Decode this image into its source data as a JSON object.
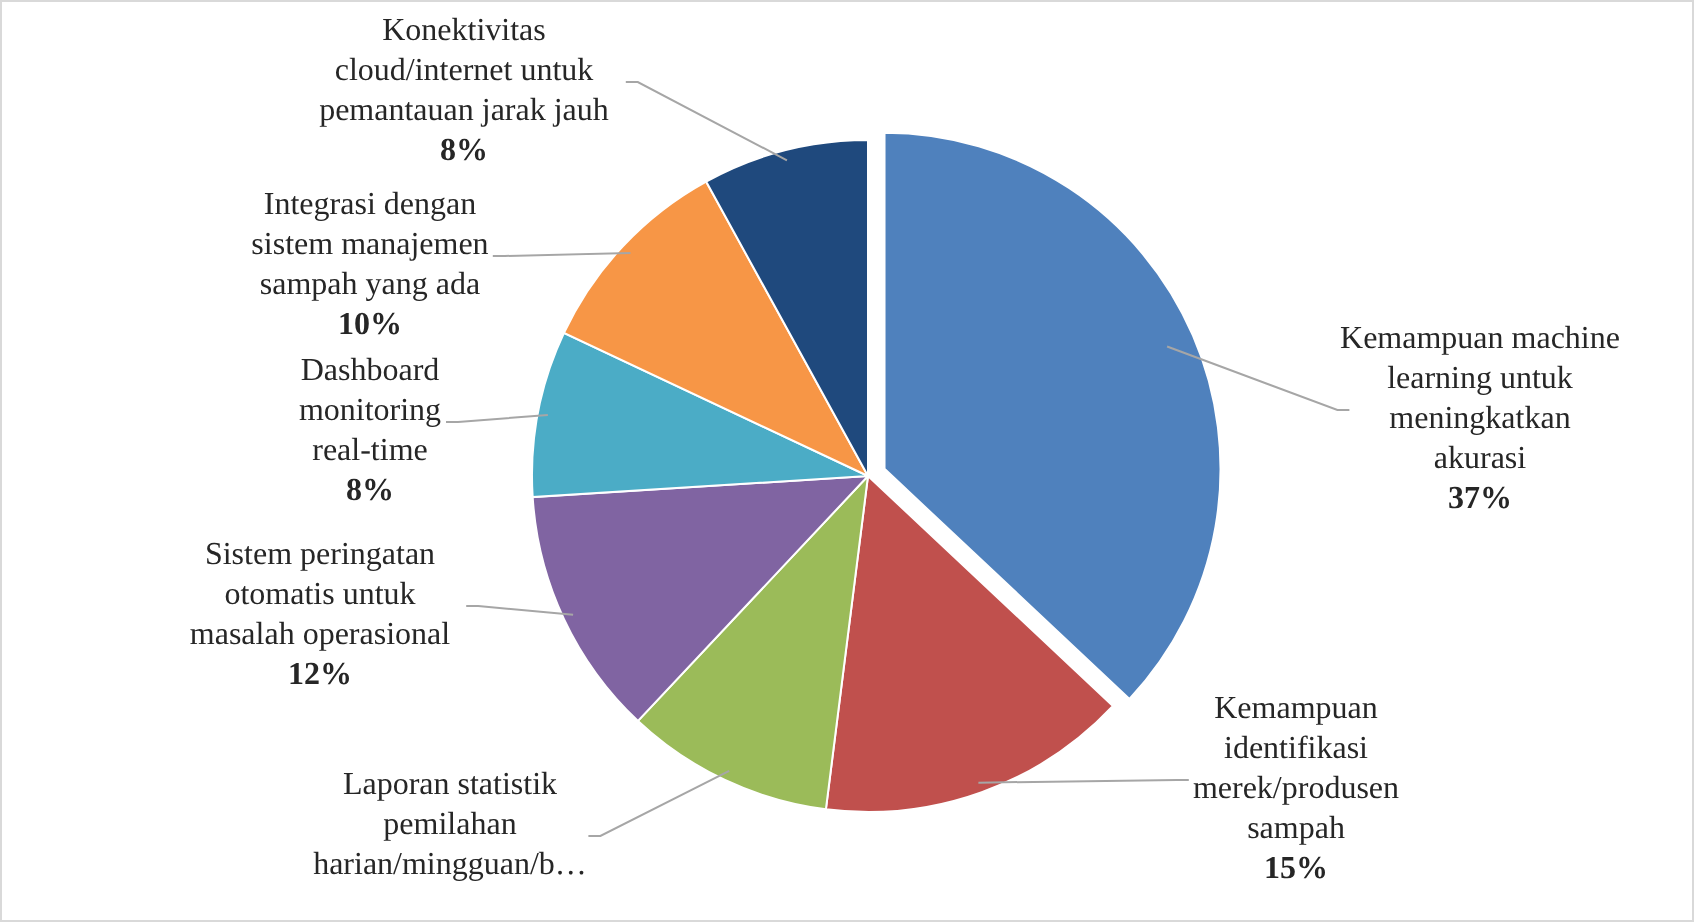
{
  "chart_data": {
    "type": "pie",
    "categories": [
      "Kemampuan machine learning untuk meningkatkan akurasi",
      "Kemampuan identifikasi merek/produsen sampah",
      "Laporan statistik pemilahan harian/mingguan/b…",
      "Sistem peringatan otomatis untuk masalah operasional",
      "Dashboard monitoring real-time",
      "Integrasi dengan sistem manajemen sampah yang ada",
      "Konektivitas cloud/internet untuk pemantauan jarak jauh"
    ],
    "values": [
      37,
      15,
      10,
      12,
      8,
      10,
      8
    ],
    "value_labels": [
      "37%",
      "15%",
      null,
      "12%",
      "8%",
      "10%",
      "8%"
    ],
    "colors": [
      "#4f81bd",
      "#c0504d",
      "#9bbb59",
      "#8064a2",
      "#4bacc6",
      "#f79646",
      "#1f497d"
    ]
  }
}
